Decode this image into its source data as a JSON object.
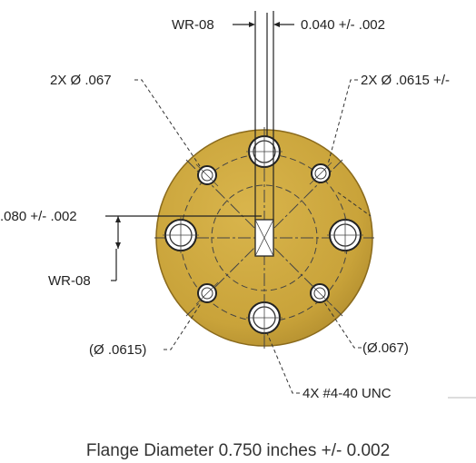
{
  "labels": {
    "wr08_top": "WR-08",
    "gap_tol": "0.040 +/- .002",
    "hole_067_top": "2X Ø .067",
    "hole_0615_top": "2X Ø .0615 +/-",
    "height_tol": ".080 +/- .002",
    "wr08_side": "WR-08",
    "hole_0615_bottom": "(Ø .0615)",
    "hole_067_bottom": "(Ø.067)",
    "thread": "4X #4-40 UNC"
  },
  "caption": "Flange Diameter 0.750 inches +/- 0.002",
  "colors": {
    "flange_fill": "#c9a33a",
    "flange_edge": "#8a6a1c",
    "line": "#222222",
    "dash": "#444444"
  }
}
